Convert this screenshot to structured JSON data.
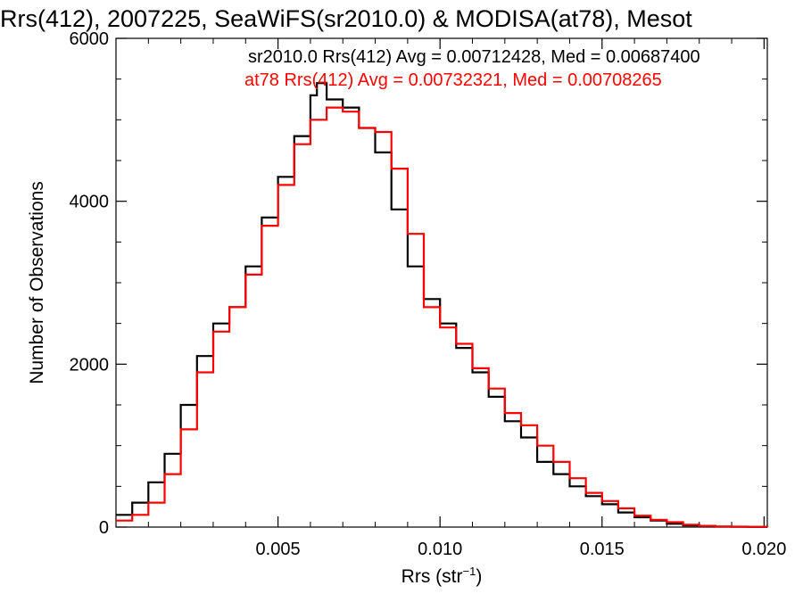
{
  "chart_data": {
    "type": "line",
    "title": "Rrs(412), 2007225, SeaWiFS(sr2010.0) & MODISA(at78), Mesot",
    "xlabel": "Rrs (str",
    "xlabel_sup": "−1",
    "xlabel_close": ")",
    "ylabel": "Number of Observations",
    "xlim": [
      0.0,
      0.0201
    ],
    "ylim": [
      0,
      6000
    ],
    "x_ticks": [
      0.005,
      0.01,
      0.015,
      0.02
    ],
    "x_tick_labels": [
      "0.005",
      "0.010",
      "0.015",
      "0.020"
    ],
    "y_ticks": [
      0,
      2000,
      4000,
      6000
    ],
    "y_tick_labels": [
      "0",
      "2000",
      "4000",
      "6000"
    ],
    "grid": false,
    "legend_position": "top-right",
    "step": "histogram",
    "series": [
      {
        "name": "sr2010.0 Rrs(412) Avg = 0.00712428, Med = 0.00687400",
        "color": "#000000",
        "x": [
          0.0,
          0.0005,
          0.001,
          0.0015,
          0.002,
          0.0025,
          0.003,
          0.0035,
          0.004,
          0.0045,
          0.005,
          0.0055,
          0.006,
          0.0062,
          0.0065,
          0.007,
          0.0075,
          0.008,
          0.0085,
          0.009,
          0.0095,
          0.01,
          0.0105,
          0.011,
          0.0115,
          0.012,
          0.0125,
          0.013,
          0.0135,
          0.014,
          0.0145,
          0.015,
          0.0155,
          0.016,
          0.0165,
          0.017,
          0.0175,
          0.018,
          0.0185,
          0.019,
          0.0195,
          0.0201
        ],
        "values": [
          150,
          300,
          550,
          900,
          1500,
          2100,
          2500,
          2700,
          3200,
          3800,
          4300,
          4800,
          5300,
          5450,
          5250,
          5150,
          4900,
          4600,
          3900,
          3200,
          2800,
          2500,
          2200,
          1900,
          1600,
          1300,
          1100,
          800,
          650,
          500,
          380,
          280,
          180,
          120,
          80,
          40,
          20,
          10,
          5,
          3,
          2,
          0
        ]
      },
      {
        "name": "at78 Rrs(412) Avg = 0.00732321, Med = 0.00708265",
        "color": "#ff0000",
        "x": [
          0.0,
          0.0005,
          0.001,
          0.0015,
          0.002,
          0.0025,
          0.003,
          0.0035,
          0.004,
          0.0045,
          0.005,
          0.0055,
          0.006,
          0.0065,
          0.007,
          0.0075,
          0.008,
          0.0085,
          0.009,
          0.0095,
          0.01,
          0.0105,
          0.011,
          0.0115,
          0.012,
          0.0125,
          0.013,
          0.0135,
          0.014,
          0.0145,
          0.015,
          0.0155,
          0.016,
          0.0165,
          0.017,
          0.0175,
          0.018,
          0.0185,
          0.019,
          0.0195,
          0.0201
        ],
        "values": [
          80,
          150,
          300,
          650,
          1200,
          1900,
          2400,
          2700,
          3100,
          3700,
          4200,
          4700,
          5000,
          5150,
          5100,
          4900,
          4850,
          4400,
          3600,
          2700,
          2450,
          2250,
          1950,
          1700,
          1400,
          1250,
          1000,
          800,
          600,
          420,
          320,
          230,
          140,
          90,
          60,
          30,
          15,
          8,
          5,
          3,
          0
        ]
      }
    ]
  }
}
